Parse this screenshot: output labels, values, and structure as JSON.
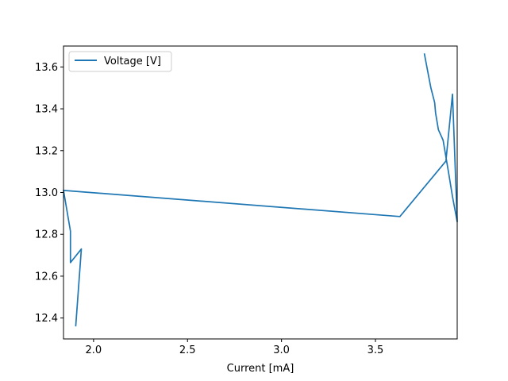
{
  "chart_data": {
    "type": "line",
    "title": "",
    "xlabel": "Current [mA]",
    "ylabel": "",
    "xlim": [
      1.84,
      3.935
    ],
    "ylim": [
      12.3,
      13.7
    ],
    "xticks": [
      2.0,
      2.5,
      3.0,
      3.5
    ],
    "xtick_labels": [
      "2.0",
      "2.5",
      "3.0",
      "3.5"
    ],
    "yticks": [
      12.4,
      12.6,
      12.8,
      13.0,
      13.2,
      13.4,
      13.6
    ],
    "ytick_labels": [
      "12.4",
      "12.6",
      "12.8",
      "13.0",
      "13.2",
      "13.4",
      "13.6"
    ],
    "grid": false,
    "legend_position": "upper-left",
    "series": [
      {
        "name": "Voltage [V]",
        "color": "#1f77b4",
        "x": [
          1.905,
          1.935,
          1.877,
          1.877,
          1.84,
          3.63,
          3.875,
          3.91,
          3.935,
          3.91,
          3.89,
          3.86,
          3.835,
          3.82,
          3.815,
          3.795,
          3.78,
          3.76
        ],
        "y": [
          12.36,
          12.73,
          12.665,
          12.815,
          13.01,
          12.885,
          13.15,
          13.47,
          12.86,
          12.98,
          13.09,
          13.25,
          13.3,
          13.38,
          13.43,
          13.5,
          13.57,
          13.665
        ]
      }
    ]
  }
}
